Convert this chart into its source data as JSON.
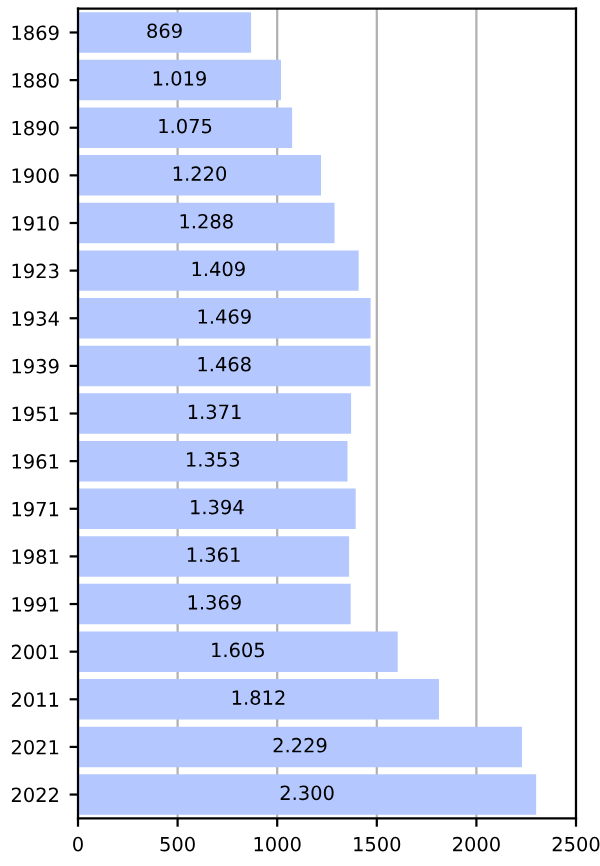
{
  "chart_data": {
    "type": "bar",
    "orientation": "horizontal",
    "categories": [
      "1869",
      "1880",
      "1890",
      "1900",
      "1910",
      "1923",
      "1934",
      "1939",
      "1951",
      "1961",
      "1971",
      "1981",
      "1991",
      "2001",
      "2011",
      "2021",
      "2022"
    ],
    "values": [
      869,
      1019,
      1075,
      1220,
      1288,
      1409,
      1469,
      1468,
      1371,
      1353,
      1394,
      1361,
      1369,
      1605,
      1812,
      2229,
      2300
    ],
    "value_labels": [
      "869",
      "1.019",
      "1.075",
      "1.220",
      "1.288",
      "1.409",
      "1.469",
      "1.468",
      "1.371",
      "1.353",
      "1.394",
      "1.361",
      "1.369",
      "1.605",
      "1.812",
      "2.229",
      "2.300"
    ],
    "color": "#b4c8ff",
    "xlim": [
      0,
      2500
    ],
    "xticks": [
      0,
      500,
      1000,
      1500,
      2000,
      2500
    ],
    "grid": "x"
  }
}
